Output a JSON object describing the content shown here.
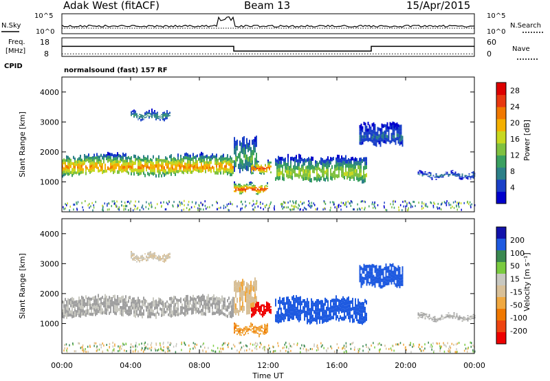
{
  "header": {
    "title": "Adak West (fitACF)",
    "beam": "Beam 13",
    "date": "15/Apr/2015"
  },
  "labels": {
    "nsky": "N.Sky",
    "nsearch": "N.Search",
    "freq_line1": "Freq.",
    "freq_line2": "[MHz]",
    "nave": "Nave",
    "cpid": "CPID",
    "cpid_value": "normalsound (fast) 157 RF",
    "y_axis": "Slant Range [km]",
    "x_axis": "Time UT",
    "power_bar": "Power [dB]",
    "velocity_bar": "Velocity [m s⁻¹]"
  },
  "noise_axis": {
    "left_ticks": [
      "10^5",
      "10^0"
    ],
    "right_ticks": [
      "10^5",
      "10^0"
    ]
  },
  "freq_axis": {
    "left_ticks": [
      18,
      8
    ],
    "right_ticks": [
      60,
      0
    ],
    "segments": [
      {
        "start": 0.0,
        "end": 10.0,
        "freq": 13.4
      },
      {
        "start": 10.0,
        "end": 18.0,
        "freq": 10.9
      },
      {
        "start": 18.0,
        "end": 24.0,
        "freq": 13.4
      }
    ],
    "nave": 8
  },
  "colors": {
    "power": [
      "#0000cc",
      "#1a40c8",
      "#2c8088",
      "#3aa060",
      "#7fc140",
      "#c8d820",
      "#f4b000",
      "#f07800",
      "#e83810",
      "#dd0000"
    ],
    "velocity": [
      "#1111aa",
      "#1e5ae0",
      "#3a8850",
      "#7acb40",
      "#c8c8c0",
      "#d8c098",
      "#f0a840",
      "#f07800",
      "#ee4410",
      "#ee0000"
    ],
    "ground_scatter": "#a0a0a0"
  },
  "chart_data": [
    {
      "type": "heatmap",
      "panel": "power",
      "x_unit": "hours UT",
      "xlim": [
        0,
        24
      ],
      "ylim": [
        0,
        4500
      ],
      "xticks": [
        "00:00",
        "04:00",
        "08:00",
        "12:00",
        "16:00",
        "20:00",
        "00:00"
      ],
      "yticks": [
        1000,
        2000,
        3000,
        4000
      ],
      "colorbar_ticks": [
        4,
        8,
        12,
        16,
        20,
        24,
        28
      ],
      "colorbar_range": [
        0,
        30
      ],
      "regions": [
        {
          "t0": 0.0,
          "t1": 10.0,
          "r0": 1200,
          "r1": 1950,
          "core": 1500,
          "level": 22
        },
        {
          "t0": 4.0,
          "t1": 6.3,
          "r0": 3050,
          "r1": 3400,
          "core": 3200,
          "level": 9
        },
        {
          "t0": 10.0,
          "t1": 11.3,
          "r0": 1300,
          "r1": 2500,
          "core": 1800,
          "level": 12
        },
        {
          "t0": 10.0,
          "t1": 12.0,
          "r0": 600,
          "r1": 1000,
          "core": 750,
          "level": 26
        },
        {
          "t0": 11.0,
          "t1": 12.2,
          "r0": 1250,
          "r1": 1700,
          "core": 1450,
          "level": 25
        },
        {
          "t0": 12.4,
          "t1": 17.7,
          "r0": 1000,
          "r1": 1900,
          "core": 1300,
          "level": 16
        },
        {
          "t0": 17.3,
          "t1": 19.8,
          "r0": 2200,
          "r1": 3000,
          "core": 2500,
          "level": 6
        },
        {
          "t0": 20.7,
          "t1": 24.0,
          "r0": 1100,
          "r1": 1350,
          "core": 1220,
          "level": 7
        }
      ]
    },
    {
      "type": "heatmap",
      "panel": "velocity",
      "x_unit": "hours UT",
      "xlim": [
        0,
        24
      ],
      "ylim": [
        0,
        4500
      ],
      "xticks": [
        "00:00",
        "04:00",
        "08:00",
        "12:00",
        "16:00",
        "20:00",
        "00:00"
      ],
      "yticks": [
        1000,
        2000,
        3000,
        4000
      ],
      "colorbar_ticks": [
        200,
        100,
        50,
        15,
        -15,
        -50,
        -100,
        -200
      ],
      "colorbar_range": [
        -250,
        250
      ],
      "regions": [
        {
          "t0": 0.0,
          "t1": 10.0,
          "r0": 1200,
          "r1": 1950,
          "core": 1500,
          "velocity": 0,
          "ground": true
        },
        {
          "t0": 4.0,
          "t1": 6.3,
          "r0": 3050,
          "r1": 3400,
          "core": 3200,
          "velocity": -20
        },
        {
          "t0": 10.0,
          "t1": 11.3,
          "r0": 1300,
          "r1": 2500,
          "core": 1800,
          "velocity": -40
        },
        {
          "t0": 10.0,
          "t1": 12.0,
          "r0": 600,
          "r1": 1000,
          "core": 750,
          "velocity": -90
        },
        {
          "t0": 11.0,
          "t1": 12.2,
          "r0": 1250,
          "r1": 1700,
          "core": 1450,
          "velocity": -230
        },
        {
          "t0": 12.4,
          "t1": 17.7,
          "r0": 1000,
          "r1": 1900,
          "core": 1300,
          "velocity": 160
        },
        {
          "t0": 17.3,
          "t1": 19.8,
          "r0": 2200,
          "r1": 3000,
          "core": 2500,
          "velocity": 180
        },
        {
          "t0": 20.7,
          "t1": 24.0,
          "r0": 1100,
          "r1": 1350,
          "core": 1220,
          "velocity": 0,
          "ground": true
        }
      ]
    }
  ]
}
